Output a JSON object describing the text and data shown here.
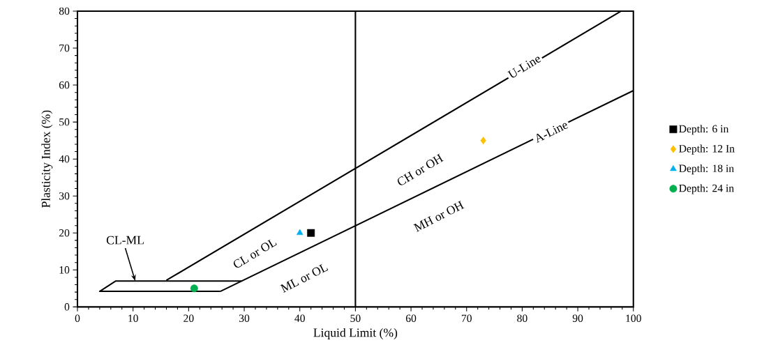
{
  "chart_data": {
    "type": "scatter",
    "xlabel": "Liquid Limit (%)",
    "ylabel": "Plasticity Index (%)",
    "xlim": [
      0,
      100
    ],
    "ylim": [
      0,
      80
    ],
    "xticks": [
      0,
      10,
      20,
      30,
      40,
      50,
      60,
      70,
      80,
      90,
      100
    ],
    "yticks": [
      0,
      10,
      20,
      30,
      40,
      50,
      60,
      70,
      80
    ],
    "grid": false,
    "legend": "right",
    "ref_lines": [
      {
        "axis": "x",
        "value": 50,
        "color": "#000000"
      }
    ],
    "series": [
      {
        "type": "line",
        "color": "#000000",
        "marker": "none",
        "x": [
          16,
          97.8
        ],
        "values": [
          7.2,
          80
        ]
      },
      {
        "type": "line",
        "color": "#000000",
        "marker": "none",
        "x": [
          25.7,
          100
        ],
        "values": [
          4.2,
          58.5
        ]
      },
      {
        "type": "line",
        "color": "#000000",
        "marker": "none",
        "x": [
          25.7,
          4,
          6.9,
          29.5
        ],
        "values": [
          4.2,
          4.2,
          7,
          7
        ]
      },
      {
        "name": "Depth: 6 in",
        "color": "#000000",
        "marker": "square",
        "x": [
          42
        ],
        "values": [
          20
        ]
      },
      {
        "name": "Depth: 12 In",
        "color": "#ffc000",
        "marker": "diamond",
        "x": [
          73
        ],
        "values": [
          45
        ]
      },
      {
        "name": "Depth: 18 in",
        "color": "#00b0f0",
        "marker": "triangle",
        "x": [
          40
        ],
        "values": [
          20
        ]
      },
      {
        "name": "Depth: 24 in",
        "color": "#00b050",
        "marker": "circle",
        "x": [
          21
        ],
        "values": [
          5
        ]
      }
    ],
    "annotations": [
      {
        "text": "U-Line",
        "x": 80.4,
        "y": 65
      },
      {
        "text": "A-Line",
        "x": 85.2,
        "y": 47.4
      },
      "CH or OH",
      "CL or OL",
      "ML or OL",
      "MH or OH",
      {
        "text": "CL-ML",
        "x": 10.4,
        "y": 7
      }
    ]
  }
}
